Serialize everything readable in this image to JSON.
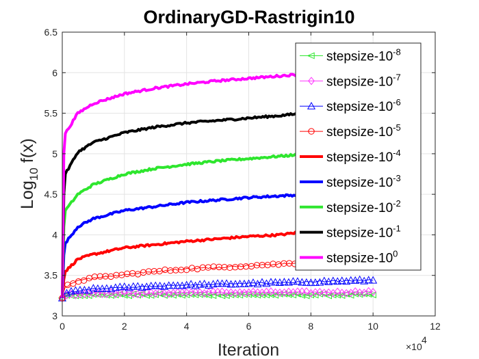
{
  "chart_data": {
    "type": "line",
    "title": "OrdinaryGD-Rastrigin10",
    "xlabel": "Iteration",
    "ylabel_main": "Log",
    "ylabel_sub": "10",
    "ylabel_tail": " f(x)",
    "x_exponent_base": "×10",
    "x_exponent_power": "4",
    "xlim": [
      0,
      120000
    ],
    "ylim": [
      3,
      6.5
    ],
    "xticks": [
      0,
      20000,
      40000,
      60000,
      80000,
      100000,
      120000
    ],
    "xtick_labels": [
      "0",
      "2",
      "4",
      "6",
      "8",
      "10",
      "12"
    ],
    "yticks": [
      3,
      3.5,
      4,
      4.5,
      5,
      5.5,
      6,
      6.5
    ],
    "ytick_labels": [
      "3",
      "3.5",
      "4",
      "4.5",
      "5",
      "5.5",
      "6",
      "6.5"
    ],
    "grid": true,
    "legend_position": "top-right",
    "series": [
      {
        "name": "stepsize-10",
        "exp": "-8",
        "color": "#2ee62e",
        "line": "thin",
        "marker": "triangle-left",
        "x": [
          0,
          500,
          1000,
          5000,
          10000,
          20000,
          30000,
          40000,
          50000,
          60000,
          70000,
          80000,
          90000,
          100000
        ],
        "y": [
          3.22,
          3.24,
          3.25,
          3.26,
          3.26,
          3.26,
          3.26,
          3.26,
          3.26,
          3.26,
          3.26,
          3.26,
          3.26,
          3.26
        ]
      },
      {
        "name": "stepsize-10",
        "exp": "-7",
        "color": "#ff33ff",
        "line": "thin",
        "marker": "diamond",
        "x": [
          0,
          500,
          1000,
          5000,
          10000,
          20000,
          30000,
          40000,
          50000,
          60000,
          70000,
          80000,
          90000,
          100000
        ],
        "y": [
          3.22,
          3.25,
          3.26,
          3.27,
          3.28,
          3.28,
          3.28,
          3.29,
          3.29,
          3.29,
          3.29,
          3.29,
          3.29,
          3.3
        ]
      },
      {
        "name": "stepsize-10",
        "exp": "-6",
        "color": "#0000ff",
        "line": "thin",
        "marker": "triangle-up",
        "x": [
          0,
          500,
          1000,
          5000,
          10000,
          20000,
          30000,
          40000,
          50000,
          60000,
          70000,
          80000,
          90000,
          100000
        ],
        "y": [
          3.22,
          3.26,
          3.28,
          3.31,
          3.33,
          3.35,
          3.37,
          3.38,
          3.39,
          3.4,
          3.41,
          3.42,
          3.43,
          3.44
        ]
      },
      {
        "name": "stepsize-10",
        "exp": "-5",
        "color": "#ff0000",
        "line": "thin",
        "marker": "circle",
        "x": [
          0,
          500,
          1000,
          5000,
          10000,
          20000,
          30000,
          40000,
          50000,
          60000,
          70000,
          80000
        ],
        "y": [
          3.22,
          3.3,
          3.36,
          3.43,
          3.47,
          3.51,
          3.55,
          3.58,
          3.6,
          3.62,
          3.64,
          3.66
        ]
      },
      {
        "name": "stepsize-10",
        "exp": "-4",
        "color": "#ff0000",
        "line": "thick",
        "marker": "none",
        "x": [
          0,
          500,
          1000,
          5000,
          10000,
          20000,
          30000,
          40000,
          50000,
          60000,
          70000,
          80000
        ],
        "y": [
          3.22,
          3.45,
          3.55,
          3.7,
          3.76,
          3.84,
          3.88,
          3.92,
          3.95,
          3.98,
          4.0,
          4.05
        ]
      },
      {
        "name": "stepsize-10",
        "exp": "-3",
        "color": "#0000ff",
        "line": "thick",
        "marker": "none",
        "x": [
          0,
          500,
          1000,
          5000,
          10000,
          20000,
          30000,
          40000,
          50000,
          60000,
          70000,
          80000
        ],
        "y": [
          3.22,
          3.75,
          3.9,
          4.1,
          4.2,
          4.3,
          4.35,
          4.4,
          4.43,
          4.46,
          4.48,
          4.5
        ]
      },
      {
        "name": "stepsize-10",
        "exp": "-2",
        "color": "#2ee62e",
        "line": "thick",
        "marker": "none",
        "x": [
          0,
          500,
          1000,
          5000,
          10000,
          20000,
          30000,
          40000,
          50000,
          60000,
          70000,
          80000
        ],
        "y": [
          3.22,
          4.1,
          4.3,
          4.5,
          4.62,
          4.75,
          4.82,
          4.87,
          4.91,
          4.94,
          4.97,
          5.0
        ]
      },
      {
        "name": "stepsize-10",
        "exp": "-1",
        "color": "#000000",
        "line": "thick",
        "marker": "none",
        "x": [
          0,
          500,
          1000,
          5000,
          10000,
          20000,
          30000,
          40000,
          50000,
          60000,
          70000,
          80000
        ],
        "y": [
          3.22,
          4.5,
          4.75,
          5.02,
          5.14,
          5.26,
          5.33,
          5.38,
          5.41,
          5.44,
          5.47,
          5.51
        ]
      },
      {
        "name": "stepsize-10",
        "exp": "0",
        "color": "#ff00ff",
        "line": "thick",
        "marker": "none",
        "x": [
          0,
          500,
          1000,
          5000,
          10000,
          20000,
          30000,
          40000,
          50000,
          60000,
          70000,
          80000
        ],
        "y": [
          3.22,
          5.0,
          5.25,
          5.5,
          5.62,
          5.74,
          5.81,
          5.86,
          5.9,
          5.93,
          5.96,
          5.99
        ]
      }
    ]
  }
}
